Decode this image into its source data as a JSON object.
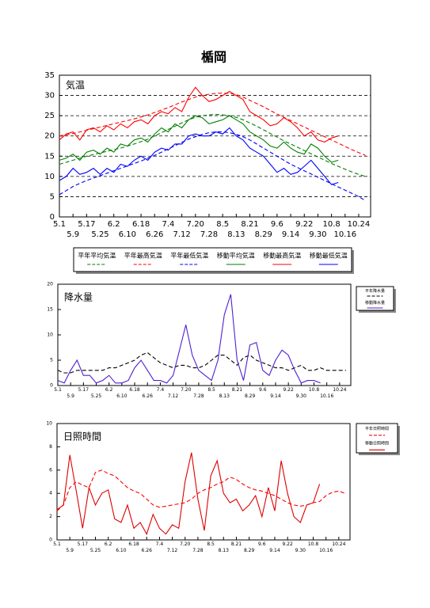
{
  "chart_data": [
    {
      "type": "line",
      "title": "楯岡",
      "label": "気温",
      "legend": "bottom",
      "grid": true,
      "x": [
        0,
        4,
        8,
        12,
        16,
        20,
        24,
        28,
        32,
        36,
        40,
        44,
        48,
        52,
        56,
        60,
        64,
        68,
        72,
        76,
        80,
        84,
        88,
        92,
        96,
        100,
        104,
        108,
        112,
        116,
        120,
        124,
        128,
        132,
        136,
        140,
        144,
        148,
        152,
        156,
        160,
        164,
        168,
        172,
        176,
        180
      ],
      "xlim": [
        0,
        183
      ],
      "xticks": [
        {
          "value": 0,
          "label": "5.1"
        },
        {
          "value": 8,
          "label": "5.9"
        },
        {
          "value": 16,
          "label": "5.17"
        },
        {
          "value": 24,
          "label": "5.25"
        },
        {
          "value": 32,
          "label": "6.2"
        },
        {
          "value": 40,
          "label": "6.10"
        },
        {
          "value": 48,
          "label": "6.18"
        },
        {
          "value": 56,
          "label": "6.26"
        },
        {
          "value": 64,
          "label": "7.4"
        },
        {
          "value": 72,
          "label": "7.12"
        },
        {
          "value": 80,
          "label": "7.20"
        },
        {
          "value": 88,
          "label": "7.28"
        },
        {
          "value": 96,
          "label": "8.5"
        },
        {
          "value": 104,
          "label": "8.13"
        },
        {
          "value": 112,
          "label": "8.21"
        },
        {
          "value": 120,
          "label": "8.29"
        },
        {
          "value": 128,
          "label": "9.6"
        },
        {
          "value": 136,
          "label": "9.14"
        },
        {
          "value": 144,
          "label": "9.22"
        },
        {
          "value": 152,
          "label": "9.30"
        },
        {
          "value": 160,
          "label": "10.8"
        },
        {
          "value": 168,
          "label": "10.16"
        },
        {
          "value": 176,
          "label": "10.24"
        }
      ],
      "ylim": [
        0,
        35
      ],
      "yticks": [
        0,
        5,
        10,
        15,
        20,
        25,
        30,
        35
      ],
      "series": [
        {
          "name": "平年平均気温",
          "color": "#008000",
          "dash": true,
          "values": [
            13,
            13.5,
            14,
            14.5,
            15,
            15.4,
            15.8,
            16.2,
            16.6,
            17,
            17.5,
            18,
            18.6,
            19.2,
            20,
            20.8,
            21.6,
            22.4,
            23.2,
            24,
            24.6,
            25,
            25.2,
            25.3,
            25.2,
            25,
            24.6,
            24,
            23.2,
            22.4,
            21.5,
            20.6,
            19.7,
            18.8,
            18,
            17.2,
            16.4,
            15.6,
            14.8,
            14,
            13.2,
            12.5,
            11.8,
            11.1,
            10.5,
            10
          ]
        },
        {
          "name": "平年最高気温",
          "color": "#ff0000",
          "dash": true,
          "values": [
            20,
            20.3,
            20.6,
            21,
            21.4,
            21.8,
            22.2,
            22.6,
            23,
            23.4,
            23.8,
            24.2,
            24.7,
            25.2,
            25.8,
            26.4,
            27,
            27.7,
            28.4,
            29,
            29.6,
            30,
            30.3,
            30.5,
            30.6,
            30.5,
            30.2,
            29.6,
            28.8,
            28,
            27.2,
            26.3,
            25.4,
            24.6,
            23.8,
            23,
            22.2,
            21.4,
            20.6,
            19.8,
            19,
            18.2,
            17.4,
            16.6,
            15.9,
            15.2
          ]
        },
        {
          "name": "平年最低気温",
          "color": "#0000ff",
          "dash": true,
          "values": [
            5.5,
            6.5,
            7.5,
            8.3,
            9,
            9.6,
            10.2,
            10.8,
            11.4,
            12,
            12.6,
            13.2,
            13.8,
            14.5,
            15.2,
            16,
            16.8,
            17.6,
            18.4,
            19.2,
            19.8,
            20.4,
            20.8,
            21,
            21,
            20.8,
            20.4,
            19.8,
            19,
            18,
            17,
            16,
            15,
            14,
            13,
            12.2,
            11.4,
            10.6,
            9.8,
            9,
            8.2,
            7.4,
            6.6,
            5.8,
            5,
            4
          ]
        },
        {
          "name": "移動平均気温",
          "color": "#008000",
          "dash": false,
          "values": [
            14,
            14.5,
            15.5,
            14,
            16,
            16.5,
            15.5,
            17,
            16,
            18,
            17.5,
            19,
            19.5,
            18.5,
            20.5,
            22,
            21,
            23,
            22,
            24,
            25,
            24.5,
            23,
            23.5,
            24,
            25,
            24,
            23,
            21,
            20,
            19,
            17.5,
            17,
            18.5,
            17,
            16,
            15.5,
            18,
            17,
            15,
            13.5,
            14,
            null,
            null,
            null,
            null
          ]
        },
        {
          "name": "移動最高気温",
          "color": "#ff0000",
          "dash": false,
          "values": [
            19,
            20.5,
            21,
            19,
            21.5,
            22,
            21,
            22.5,
            21.5,
            23,
            22,
            23.5,
            24,
            23,
            25,
            26,
            25.5,
            27,
            26,
            29.5,
            32,
            30,
            28.5,
            29,
            30,
            31,
            30,
            29,
            26,
            25,
            24,
            22.5,
            23,
            24.5,
            23.5,
            22,
            20,
            21,
            19,
            18.5,
            19.5,
            20,
            null,
            null,
            null,
            null
          ]
        },
        {
          "name": "移動最低気温",
          "color": "#0000ff",
          "dash": false,
          "values": [
            9,
            10,
            12,
            10.5,
            11,
            12,
            10.5,
            12,
            11,
            13,
            12.5,
            14,
            15,
            14,
            16,
            17,
            16.5,
            18,
            18,
            20,
            20.5,
            20,
            20,
            21,
            20.5,
            22,
            20,
            19,
            17,
            16,
            15,
            13,
            11,
            12,
            10.5,
            11,
            12.5,
            14,
            12,
            10,
            8,
            8.5,
            null,
            null,
            null,
            null
          ]
        }
      ]
    },
    {
      "type": "line",
      "label": "降水量",
      "legend": "right",
      "grid": false,
      "x": [
        0,
        4,
        8,
        12,
        16,
        20,
        24,
        28,
        32,
        36,
        40,
        44,
        48,
        52,
        56,
        60,
        64,
        68,
        72,
        76,
        80,
        84,
        88,
        92,
        96,
        100,
        104,
        108,
        112,
        116,
        120,
        124,
        128,
        132,
        136,
        140,
        144,
        148,
        152,
        156,
        160,
        164,
        168,
        172,
        176,
        180
      ],
      "xlim": [
        0,
        183
      ],
      "xticks": [
        {
          "value": 0,
          "label": "5.1"
        },
        {
          "value": 8,
          "label": "5.9"
        },
        {
          "value": 16,
          "label": "5.17"
        },
        {
          "value": 24,
          "label": "5.25"
        },
        {
          "value": 32,
          "label": "6.2"
        },
        {
          "value": 40,
          "label": "6.10"
        },
        {
          "value": 48,
          "label": "6.18"
        },
        {
          "value": 56,
          "label": "6.26"
        },
        {
          "value": 64,
          "label": "7.4"
        },
        {
          "value": 72,
          "label": "7.12"
        },
        {
          "value": 80,
          "label": "7.20"
        },
        {
          "value": 88,
          "label": "7.28"
        },
        {
          "value": 96,
          "label": "8.5"
        },
        {
          "value": 104,
          "label": "8.13"
        },
        {
          "value": 112,
          "label": "8.21"
        },
        {
          "value": 120,
          "label": "8.29"
        },
        {
          "value": 128,
          "label": "9.6"
        },
        {
          "value": 136,
          "label": "9.14"
        },
        {
          "value": 144,
          "label": "9.22"
        },
        {
          "value": 152,
          "label": "9.30"
        },
        {
          "value": 160,
          "label": "10.8"
        },
        {
          "value": 168,
          "label": "10.16"
        },
        {
          "value": 176,
          "label": "10.24"
        }
      ],
      "ylim": [
        0,
        20
      ],
      "yticks": [
        0,
        5,
        10,
        15,
        20
      ],
      "series": [
        {
          "name": "平年降水量",
          "color": "#000000",
          "dash": true,
          "values": [
            3,
            2.5,
            2.5,
            3,
            3,
            3,
            3,
            3,
            3.5,
            3.5,
            4,
            4.5,
            5,
            6,
            6.5,
            5.5,
            4.5,
            4,
            3.5,
            4,
            4,
            3.5,
            3.5,
            4,
            5,
            6,
            6,
            5,
            4,
            5.5,
            6,
            5,
            4.5,
            4,
            3.5,
            3.5,
            3,
            3.5,
            4,
            3,
            3,
            3.5,
            3,
            3,
            3,
            3
          ]
        },
        {
          "name": "移動降水量",
          "color": "#5020d0",
          "dash": false,
          "values": [
            1,
            0.5,
            3,
            5,
            2,
            2,
            0.5,
            1,
            2,
            0.5,
            0.5,
            1,
            3.5,
            5,
            3,
            1,
            1,
            0.5,
            2,
            7,
            12,
            6,
            3,
            2,
            1,
            5,
            14,
            18,
            5,
            1,
            8,
            8.5,
            3,
            2,
            5,
            7,
            6,
            3,
            0.5,
            1,
            1,
            0.5,
            null,
            null,
            null,
            null
          ]
        }
      ]
    },
    {
      "type": "line",
      "label": "日照時間",
      "legend": "right",
      "grid": false,
      "x": [
        0,
        4,
        8,
        12,
        16,
        20,
        24,
        28,
        32,
        36,
        40,
        44,
        48,
        52,
        56,
        60,
        64,
        68,
        72,
        76,
        80,
        84,
        88,
        92,
        96,
        100,
        104,
        108,
        112,
        116,
        120,
        124,
        128,
        132,
        136,
        140,
        144,
        148,
        152,
        156,
        160,
        164,
        168,
        172,
        176,
        180
      ],
      "xlim": [
        0,
        183
      ],
      "xticks": [
        {
          "value": 0,
          "label": "5.1"
        },
        {
          "value": 8,
          "label": "5.9"
        },
        {
          "value": 16,
          "label": "5.17"
        },
        {
          "value": 24,
          "label": "5.25"
        },
        {
          "value": 32,
          "label": "6.2"
        },
        {
          "value": 40,
          "label": "6.10"
        },
        {
          "value": 48,
          "label": "6.18"
        },
        {
          "value": 56,
          "label": "6.26"
        },
        {
          "value": 64,
          "label": "7.4"
        },
        {
          "value": 72,
          "label": "7.12"
        },
        {
          "value": 80,
          "label": "7.20"
        },
        {
          "value": 88,
          "label": "7.28"
        },
        {
          "value": 96,
          "label": "8.5"
        },
        {
          "value": 104,
          "label": "8.13"
        },
        {
          "value": 112,
          "label": "8.21"
        },
        {
          "value": 120,
          "label": "8.29"
        },
        {
          "value": 128,
          "label": "9.6"
        },
        {
          "value": 136,
          "label": "9.14"
        },
        {
          "value": 144,
          "label": "9.22"
        },
        {
          "value": 152,
          "label": "9.30"
        },
        {
          "value": 160,
          "label": "10.8"
        },
        {
          "value": 168,
          "label": "10.16"
        },
        {
          "value": 176,
          "label": "10.24"
        }
      ],
      "ylim": [
        0,
        10
      ],
      "yticks": [
        0,
        2,
        4,
        6,
        8,
        10
      ],
      "series": [
        {
          "name": "平年日照時間",
          "color": "#ff0000",
          "dash": true,
          "values": [
            2.5,
            3,
            4.5,
            5,
            4.7,
            4.5,
            5.8,
            6,
            5.7,
            5.5,
            5,
            4.5,
            4.2,
            4,
            3.5,
            3,
            2.8,
            2.9,
            3,
            3.1,
            3.2,
            3.5,
            4,
            4.3,
            4.5,
            4.8,
            5,
            5.4,
            5.2,
            4.8,
            4.5,
            4.3,
            4.2,
            4,
            3.8,
            3.5,
            3.2,
            3,
            2.9,
            3,
            3.2,
            3.3,
            3.8,
            4.1,
            4.2,
            4
          ]
        },
        {
          "name": "移動日照時間",
          "color": "#dd0000",
          "dash": false,
          "values": [
            2.6,
            3,
            7.3,
            4.2,
            1,
            4.5,
            3,
            4,
            4.3,
            1.8,
            1.5,
            3,
            1,
            1.5,
            0.5,
            2.2,
            1,
            0.5,
            1.3,
            1,
            5,
            7.5,
            3.5,
            0.8,
            5.5,
            6.8,
            4,
            3.2,
            3.5,
            2.5,
            3,
            3.8,
            2,
            4.5,
            2.5,
            6.8,
            4,
            2,
            1.5,
            3,
            3.2,
            4.8,
            null,
            null,
            null,
            null
          ]
        }
      ]
    }
  ]
}
